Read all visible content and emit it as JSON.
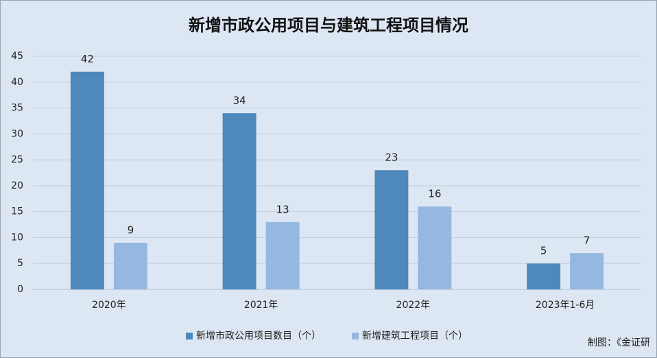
{
  "chart_data": {
    "type": "bar",
    "title": "新增市政公用项目与建筑工程项目情况",
    "categories": [
      "2020年",
      "2021年",
      "2022年",
      "2023年1-6月"
    ],
    "series": [
      {
        "name": "新增市政公用项目数目（个）",
        "color": "#4f88bb",
        "values": [
          42,
          34,
          23,
          5
        ]
      },
      {
        "name": "新增建筑工程项目（个）",
        "color": "#95b8e0",
        "values": [
          9,
          13,
          16,
          7
        ]
      }
    ],
    "ylim": [
      0,
      45
    ],
    "yticks": [
      0,
      5,
      10,
      15,
      20,
      25,
      30,
      35,
      40,
      45
    ],
    "grid": true,
    "legend": "bottom",
    "source": "制图：《金证研"
  }
}
